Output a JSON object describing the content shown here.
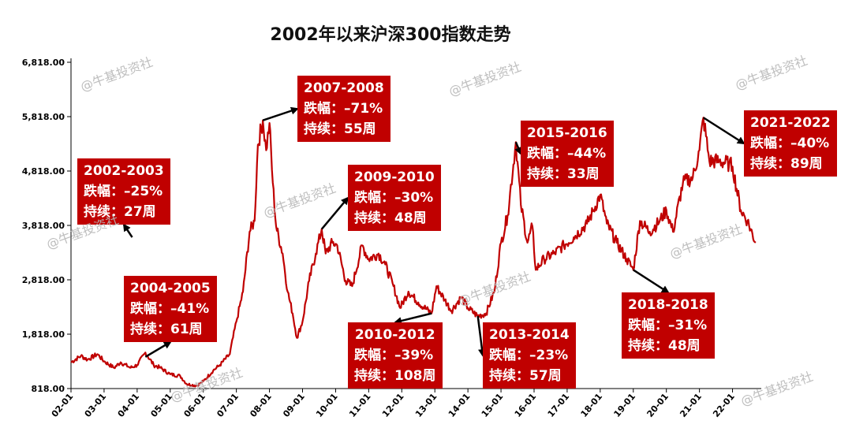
{
  "title": "2002年以来沪深300指数走势",
  "watermark": "@牛基投资社",
  "chart_data": {
    "type": "line",
    "title": "2002年以来沪深300指数走势",
    "ylim": [
      818,
      6818
    ],
    "y_ticks": [
      "6,818.00",
      "5,818.00",
      "4,818.00",
      "3,818.00",
      "2,818.00",
      "1,818.00",
      "818.00"
    ],
    "x_ticks": [
      "02-01",
      "03-01",
      "04-01",
      "05-01",
      "06-01",
      "07-01",
      "08-01",
      "09-01",
      "10-01",
      "11-01",
      "12-01",
      "13-01",
      "14-01",
      "15-01",
      "16-01",
      "17-01",
      "18-01",
      "19-01",
      "20-01",
      "21-01",
      "22-01"
    ],
    "series": [
      {
        "color": "#c00000",
        "points": [
          [
            2002.0,
            1300
          ],
          [
            2002.3,
            1420
          ],
          [
            2002.5,
            1350
          ],
          [
            2002.8,
            1450
          ],
          [
            2003.0,
            1320
          ],
          [
            2003.3,
            1200
          ],
          [
            2003.5,
            1300
          ],
          [
            2003.8,
            1200
          ],
          [
            2004.0,
            1250
          ],
          [
            2004.25,
            1480
          ],
          [
            2004.5,
            1250
          ],
          [
            2004.7,
            1200
          ],
          [
            2005.0,
            1080
          ],
          [
            2005.3,
            1050
          ],
          [
            2005.5,
            900
          ],
          [
            2005.8,
            870
          ],
          [
            2006.0,
            950
          ],
          [
            2006.3,
            1150
          ],
          [
            2006.5,
            1250
          ],
          [
            2006.8,
            1450
          ],
          [
            2007.0,
            2050
          ],
          [
            2007.2,
            2600
          ],
          [
            2007.4,
            3700
          ],
          [
            2007.55,
            3900
          ],
          [
            2007.65,
            5300
          ],
          [
            2007.8,
            5750
          ],
          [
            2007.9,
            5200
          ],
          [
            2008.0,
            5700
          ],
          [
            2008.1,
            4600
          ],
          [
            2008.2,
            3800
          ],
          [
            2008.4,
            3300
          ],
          [
            2008.55,
            2600
          ],
          [
            2008.7,
            2200
          ],
          [
            2008.83,
            1750
          ],
          [
            2009.0,
            2050
          ],
          [
            2009.2,
            2800
          ],
          [
            2009.4,
            3300
          ],
          [
            2009.58,
            3750
          ],
          [
            2009.7,
            3300
          ],
          [
            2009.9,
            3500
          ],
          [
            2010.05,
            3450
          ],
          [
            2010.3,
            2800
          ],
          [
            2010.5,
            2700
          ],
          [
            2010.8,
            3450
          ],
          [
            2011.0,
            3200
          ],
          [
            2011.3,
            3300
          ],
          [
            2011.5,
            3100
          ],
          [
            2011.75,
            2700
          ],
          [
            2011.95,
            2300
          ],
          [
            2012.2,
            2600
          ],
          [
            2012.5,
            2400
          ],
          [
            2012.9,
            2200
          ],
          [
            2013.05,
            2700
          ],
          [
            2013.3,
            2450
          ],
          [
            2013.5,
            2250
          ],
          [
            2013.8,
            2500
          ],
          [
            2014.0,
            2300
          ],
          [
            2014.3,
            2150
          ],
          [
            2014.55,
            2200
          ],
          [
            2014.8,
            2600
          ],
          [
            2015.0,
            3500
          ],
          [
            2015.2,
            4000
          ],
          [
            2015.45,
            5350
          ],
          [
            2015.6,
            4200
          ],
          [
            2015.8,
            3500
          ],
          [
            2015.95,
            3800
          ],
          [
            2016.05,
            3000
          ],
          [
            2016.3,
            3200
          ],
          [
            2016.6,
            3300
          ],
          [
            2016.9,
            3450
          ],
          [
            2017.2,
            3600
          ],
          [
            2017.6,
            3850
          ],
          [
            2017.8,
            4100
          ],
          [
            2018.0,
            4380
          ],
          [
            2018.2,
            3850
          ],
          [
            2018.5,
            3500
          ],
          [
            2018.8,
            3200
          ],
          [
            2019.0,
            3000
          ],
          [
            2019.2,
            3900
          ],
          [
            2019.5,
            3700
          ],
          [
            2019.8,
            3900
          ],
          [
            2020.0,
            4100
          ],
          [
            2020.2,
            3700
          ],
          [
            2020.5,
            4600
          ],
          [
            2020.8,
            4700
          ],
          [
            2021.0,
            5200
          ],
          [
            2021.12,
            5800
          ],
          [
            2021.3,
            5000
          ],
          [
            2021.6,
            5000
          ],
          [
            2021.9,
            4950
          ],
          [
            2022.0,
            4900
          ],
          [
            2022.25,
            4100
          ],
          [
            2022.45,
            3900
          ],
          [
            2022.7,
            3500
          ]
        ]
      }
    ],
    "annotations": [
      {
        "period": "2002-2003",
        "drop": "跌幅：–25%",
        "duration": "持续：27周",
        "from": [
          2002.45,
          1450
        ],
        "to": [
          2003.85,
          3600
        ]
      },
      {
        "period": "2004-2005",
        "drop": "跌幅：–41%",
        "duration": "持续：61周",
        "from": [
          2004.25,
          1400
        ],
        "to": [
          2005.8,
          870
        ]
      },
      {
        "period": "2007-2008",
        "drop": "跌幅：–71%",
        "duration": "持续：55周",
        "from": [
          2007.8,
          5750
        ],
        "to": [
          2008.83,
          1750
        ]
      },
      {
        "period": "2009-2010",
        "drop": "跌幅：–30%",
        "duration": "持续：48周",
        "from": [
          2009.58,
          3750
        ],
        "to": [
          2010.5,
          2700
        ]
      },
      {
        "period": "2010-2012",
        "drop": "跌幅：–39%",
        "duration": "持续：108周",
        "from": [
          2010.8,
          3450
        ],
        "to": [
          2012.9,
          2200
        ]
      },
      {
        "period": "2013-2014",
        "drop": "跌幅：–23%",
        "duration": "持续：57周",
        "from": [
          2013.05,
          2700
        ],
        "to": [
          2014.3,
          2150
        ]
      },
      {
        "period": "2015-2016",
        "drop": "跌幅：–44%",
        "duration": "持续：33周",
        "from": [
          2015.45,
          5350
        ],
        "to": [
          2016.05,
          3000
        ]
      },
      {
        "period": "2018-2018",
        "drop": "跌幅：–31%",
        "duration": "持续：48周",
        "from": [
          2018.0,
          4380
        ],
        "to": [
          2019.0,
          3000
        ]
      },
      {
        "period": "2021-2022",
        "drop": "跌幅：–40%",
        "duration": "持续：89周",
        "from": [
          2021.12,
          5800
        ],
        "to": [
          2022.7,
          3500
        ]
      }
    ],
    "grid": false,
    "legend": "none"
  }
}
